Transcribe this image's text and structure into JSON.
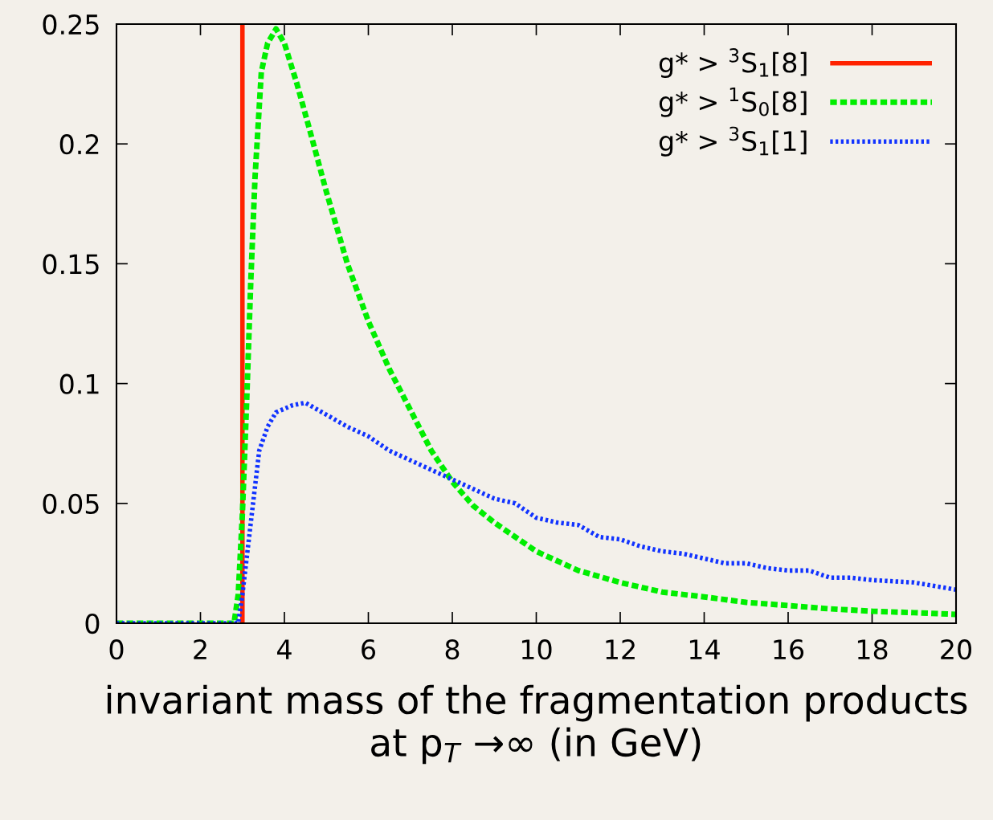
{
  "chart_data": {
    "type": "line",
    "xlabel": "invariant mass of the fragmentation products at p$_{T}$ →∞ (in GeV)",
    "xlim": [
      0,
      20
    ],
    "xticks": [
      0,
      2,
      4,
      6,
      8,
      10,
      12,
      14,
      16,
      18,
      20
    ],
    "ylim": [
      0,
      0.25
    ],
    "yticks": [
      0,
      0.05,
      0.1,
      0.15,
      0.2,
      0.25
    ],
    "grid": false,
    "legend": "top right",
    "series": [
      {
        "name": "g* > $^{3}$S$_{1}$[8]",
        "color": "#ff2200",
        "line_style": "solid",
        "x": [
          3,
          3
        ],
        "values": [
          0,
          0.25
        ]
      },
      {
        "name": "g* > $^{1}$S$_{0}$[8]",
        "color": "#00ee00",
        "line_style": "dashed",
        "x": [
          0,
          2.8,
          2.9,
          3.0,
          3.1,
          3.2,
          3.3,
          3.45,
          3.6,
          3.8,
          4.0,
          4.3,
          4.6,
          5.0,
          5.5,
          6.0,
          6.5,
          7.0,
          7.5,
          8.0,
          8.5,
          9,
          10,
          11,
          12,
          13,
          14,
          15,
          16,
          17,
          18,
          19,
          20
        ],
        "values": [
          0,
          0,
          0.012,
          0.046,
          0.092,
          0.143,
          0.186,
          0.23,
          0.242,
          0.248,
          0.242,
          0.225,
          0.206,
          0.18,
          0.15,
          0.126,
          0.106,
          0.089,
          0.072,
          0.059,
          0.049,
          0.042,
          0.03,
          0.022,
          0.017,
          0.013,
          0.011,
          0.0087,
          0.0074,
          0.006,
          0.005,
          0.0044,
          0.0037
        ]
      },
      {
        "name": "g* > $^{3}$S$_{1}$[1]",
        "color": "#1133ff",
        "line_style": "dotted",
        "x": [
          0,
          2.9,
          3.0,
          3.2,
          3.4,
          3.6,
          3.8,
          4.2,
          4.5,
          5.0,
          5.5,
          6.0,
          6.5,
          7.0,
          7.5,
          8.0,
          8.5,
          9.0,
          9.5,
          10,
          10.5,
          11,
          11.5,
          12,
          12.5,
          13,
          13.5,
          14,
          14.5,
          15,
          15.5,
          16,
          16.5,
          17,
          17.5,
          18,
          19,
          20
        ],
        "values": [
          0,
          0,
          0.012,
          0.042,
          0.072,
          0.082,
          0.088,
          0.091,
          0.092,
          0.087,
          0.082,
          0.078,
          0.072,
          0.068,
          0.064,
          0.06,
          0.056,
          0.052,
          0.05,
          0.044,
          0.042,
          0.041,
          0.036,
          0.035,
          0.032,
          0.03,
          0.029,
          0.027,
          0.025,
          0.025,
          0.023,
          0.022,
          0.022,
          0.019,
          0.019,
          0.018,
          0.017,
          0.014
        ]
      }
    ]
  }
}
